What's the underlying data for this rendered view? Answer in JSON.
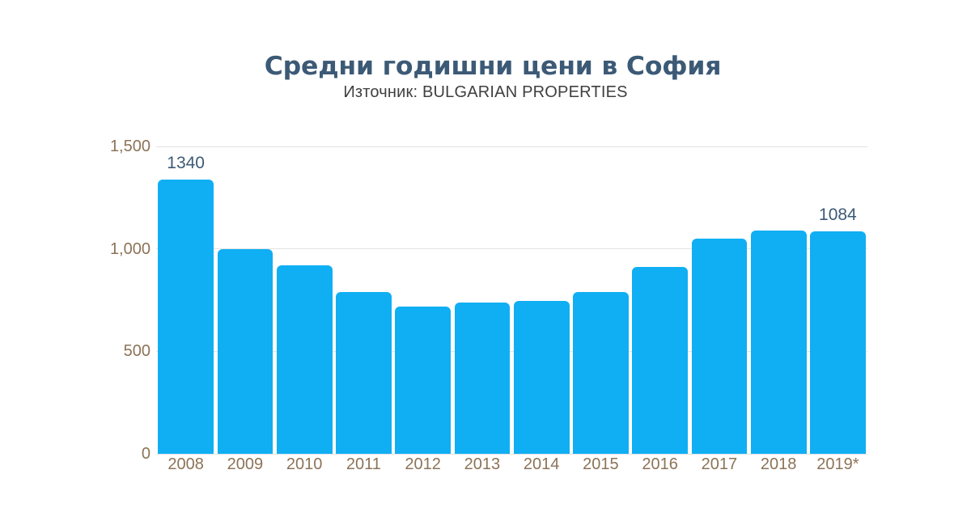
{
  "chart_data": {
    "type": "bar",
    "title": "Средни годишни цени в София",
    "subtitle": "Източник: BULGARIAN PROPERTIES",
    "categories": [
      "2008",
      "2009",
      "2010",
      "2011",
      "2012",
      "2013",
      "2014",
      "2015",
      "2016",
      "2017",
      "2018",
      "2019*"
    ],
    "values": [
      1340,
      1000,
      920,
      790,
      720,
      740,
      745,
      790,
      910,
      1050,
      1090,
      1084
    ],
    "value_labels": {
      "0": "1340",
      "11": "1084"
    },
    "ylim": [
      0,
      1500
    ],
    "yticks": [
      0,
      500,
      1000,
      1500
    ],
    "ytick_labels": [
      "0",
      "500",
      "1,000",
      "1,500"
    ],
    "grid": true,
    "legend": false,
    "xlabel": "",
    "ylabel": "",
    "colors": {
      "bar": "#10aff3",
      "axis_labels": "#8c7357",
      "title": "#3c5a76",
      "subtitle": "#3f3f3f",
      "gridline": "#e3e3e3",
      "value_labels": "#3c5a76",
      "background": "#ffffff"
    }
  }
}
